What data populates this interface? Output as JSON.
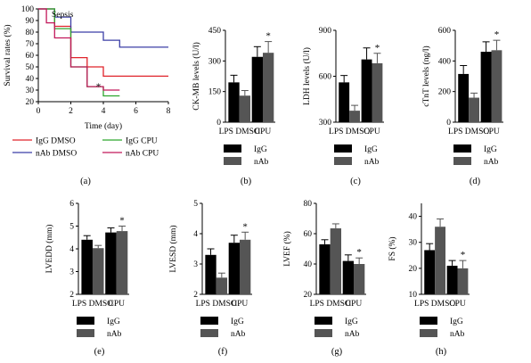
{
  "colors": {
    "IgG": "#000000",
    "nAb": "#555555",
    "IgG DMSO": "#e0242b",
    "nAb DMSO": "#3b3fa6",
    "IgG CPU": "#2ea62e",
    "nAb CPU": "#c2185b"
  },
  "chart_data": [
    {
      "panel": "(a)",
      "type": "line",
      "title": "Sepsis",
      "xlabel": "Time (day)",
      "ylabel": "Survival rates (%)",
      "xlim": [
        0,
        8
      ],
      "ylim": [
        20,
        100
      ],
      "xticks": [
        "0",
        "2",
        "4",
        "6",
        "8"
      ],
      "yticks": [
        "20",
        "30",
        "40",
        "50",
        "60",
        "70",
        "80",
        "90",
        "100"
      ],
      "step": true,
      "series": [
        {
          "name": "IgG DMSO",
          "points": [
            [
              0,
              100
            ],
            [
              1,
              100
            ],
            [
              1,
              85
            ],
            [
              2,
              85
            ],
            [
              2,
              58
            ],
            [
              3,
              58
            ],
            [
              3,
              50
            ],
            [
              4,
              50
            ],
            [
              4,
              42
            ],
            [
              8,
              42
            ]
          ]
        },
        {
          "name": "nAb DMSO",
          "points": [
            [
              0,
              100
            ],
            [
              1,
              100
            ],
            [
              1,
              93
            ],
            [
              2,
              93
            ],
            [
              2,
              80
            ],
            [
              4,
              80
            ],
            [
              4,
              73
            ],
            [
              5,
              73
            ],
            [
              5,
              67
            ],
            [
              8,
              67
            ]
          ]
        },
        {
          "name": "IgG CPU",
          "points": [
            [
              0,
              100
            ],
            [
              1,
              100
            ],
            [
              1,
              83
            ],
            [
              2,
              83
            ],
            [
              2,
              50
            ],
            [
              3,
              50
            ],
            [
              3,
              33
            ],
            [
              4,
              33
            ],
            [
              4,
              25
            ],
            [
              5,
              25
            ]
          ]
        },
        {
          "name": "nAb CPU",
          "points": [
            [
              0,
              100
            ],
            [
              0.5,
              100
            ],
            [
              0.5,
              88
            ],
            [
              1,
              88
            ],
            [
              1,
              75
            ],
            [
              2,
              75
            ],
            [
              2,
              50
            ],
            [
              3,
              50
            ],
            [
              3,
              33
            ],
            [
              4,
              33
            ],
            [
              4,
              30
            ],
            [
              5,
              30
            ]
          ]
        }
      ],
      "annotations": [
        {
          "text": "*",
          "x": 3.7,
          "y": 32
        }
      ],
      "legend": [
        "IgG DMSO",
        "IgG CPU",
        "nAb DMSO",
        "nAb CPU"
      ]
    },
    {
      "panel": "(b)",
      "type": "bar",
      "ylabel": "CK-MB levels (U/l)",
      "ylim": [
        0,
        450
      ],
      "yticks": [
        "0",
        "150",
        "300",
        "450"
      ],
      "categories": [
        "LPS DMSO",
        "CPU"
      ],
      "series": [
        {
          "name": "IgG",
          "values": [
            195,
            320
          ],
          "errors": [
            35,
            50
          ]
        },
        {
          "name": "nAb",
          "values": [
            130,
            340
          ],
          "errors": [
            25,
            55
          ]
        }
      ],
      "star": "*",
      "legend": [
        "IgG",
        "nAb"
      ]
    },
    {
      "panel": "(c)",
      "type": "bar",
      "ylabel": "LDH levels (U/l)",
      "ylim": [
        300,
        900
      ],
      "yticks": [
        "300",
        "600",
        "900"
      ],
      "categories": [
        "LPS DMSO",
        "CPU"
      ],
      "series": [
        {
          "name": "IgG",
          "values": [
            560,
            710
          ],
          "errors": [
            45,
            75
          ]
        },
        {
          "name": "nAb",
          "values": [
            375,
            685
          ],
          "errors": [
            35,
            65
          ]
        }
      ],
      "star": "*",
      "legend": [
        "IgG",
        "nAb"
      ]
    },
    {
      "panel": "(d)",
      "type": "bar",
      "ylabel": "cTnT levels (ng/l)",
      "ylim": [
        0,
        600
      ],
      "yticks": [
        "0",
        "200",
        "400",
        "600"
      ],
      "categories": [
        "LPS DMSO",
        "CPU"
      ],
      "series": [
        {
          "name": "IgG",
          "values": [
            315,
            460
          ],
          "errors": [
            55,
            65
          ]
        },
        {
          "name": "nAb",
          "values": [
            160,
            470
          ],
          "errors": [
            30,
            65
          ]
        }
      ],
      "star": "*",
      "legend": [
        "IgG",
        "nAb"
      ]
    },
    {
      "panel": "(e)",
      "type": "bar",
      "ylabel": "LVEDD (mm)",
      "ylim": [
        2,
        6
      ],
      "yticks": [
        "2",
        "3",
        "4",
        "5",
        "6"
      ],
      "categories": [
        "LPS DMSO",
        "CPU"
      ],
      "series": [
        {
          "name": "IgG",
          "values": [
            4.4,
            4.72
          ],
          "errors": [
            0.18,
            0.2
          ]
        },
        {
          "name": "nAb",
          "values": [
            4.03,
            4.78
          ],
          "errors": [
            0.12,
            0.22
          ]
        }
      ],
      "star": "*",
      "legend": [
        "IgG",
        "nAb"
      ]
    },
    {
      "panel": "(f)",
      "type": "bar",
      "ylabel": "LVESD (mm)",
      "ylim": [
        2,
        5
      ],
      "yticks": [
        "2",
        "3",
        "4",
        "5"
      ],
      "categories": [
        "LPS DMSO",
        "CPU"
      ],
      "series": [
        {
          "name": "IgG",
          "values": [
            3.3,
            3.7
          ],
          "errors": [
            0.2,
            0.25
          ]
        },
        {
          "name": "nAb",
          "values": [
            2.55,
            3.8
          ],
          "errors": [
            0.15,
            0.25
          ]
        }
      ],
      "star": "*",
      "legend": [
        "IgG",
        "nAb"
      ]
    },
    {
      "panel": "(g)",
      "type": "bar",
      "ylabel": "LVEF (%)",
      "ylim": [
        20,
        80
      ],
      "yticks": [
        "20",
        "40",
        "60",
        "80"
      ],
      "categories": [
        "LPS DMSO",
        "CPU"
      ],
      "series": [
        {
          "name": "IgG",
          "values": [
            53,
            42
          ],
          "errors": [
            3,
            4
          ]
        },
        {
          "name": "nAb",
          "values": [
            63.5,
            40
          ],
          "errors": [
            3,
            4
          ]
        }
      ],
      "star": "*",
      "legend": [
        "IgG",
        "nAb"
      ]
    },
    {
      "panel": "(h)",
      "type": "bar",
      "ylabel": "FS (%)",
      "ylim": [
        10,
        45
      ],
      "yticks": [
        "10",
        "20",
        "30",
        "40"
      ],
      "categories": [
        "LPS DMSO",
        "CPU"
      ],
      "series": [
        {
          "name": "IgG",
          "values": [
            27,
            21
          ],
          "errors": [
            2.5,
            2
          ]
        },
        {
          "name": "nAb",
          "values": [
            36,
            20
          ],
          "errors": [
            3,
            3
          ]
        }
      ],
      "star": "*",
      "legend": [
        "IgG",
        "nAb"
      ]
    }
  ]
}
